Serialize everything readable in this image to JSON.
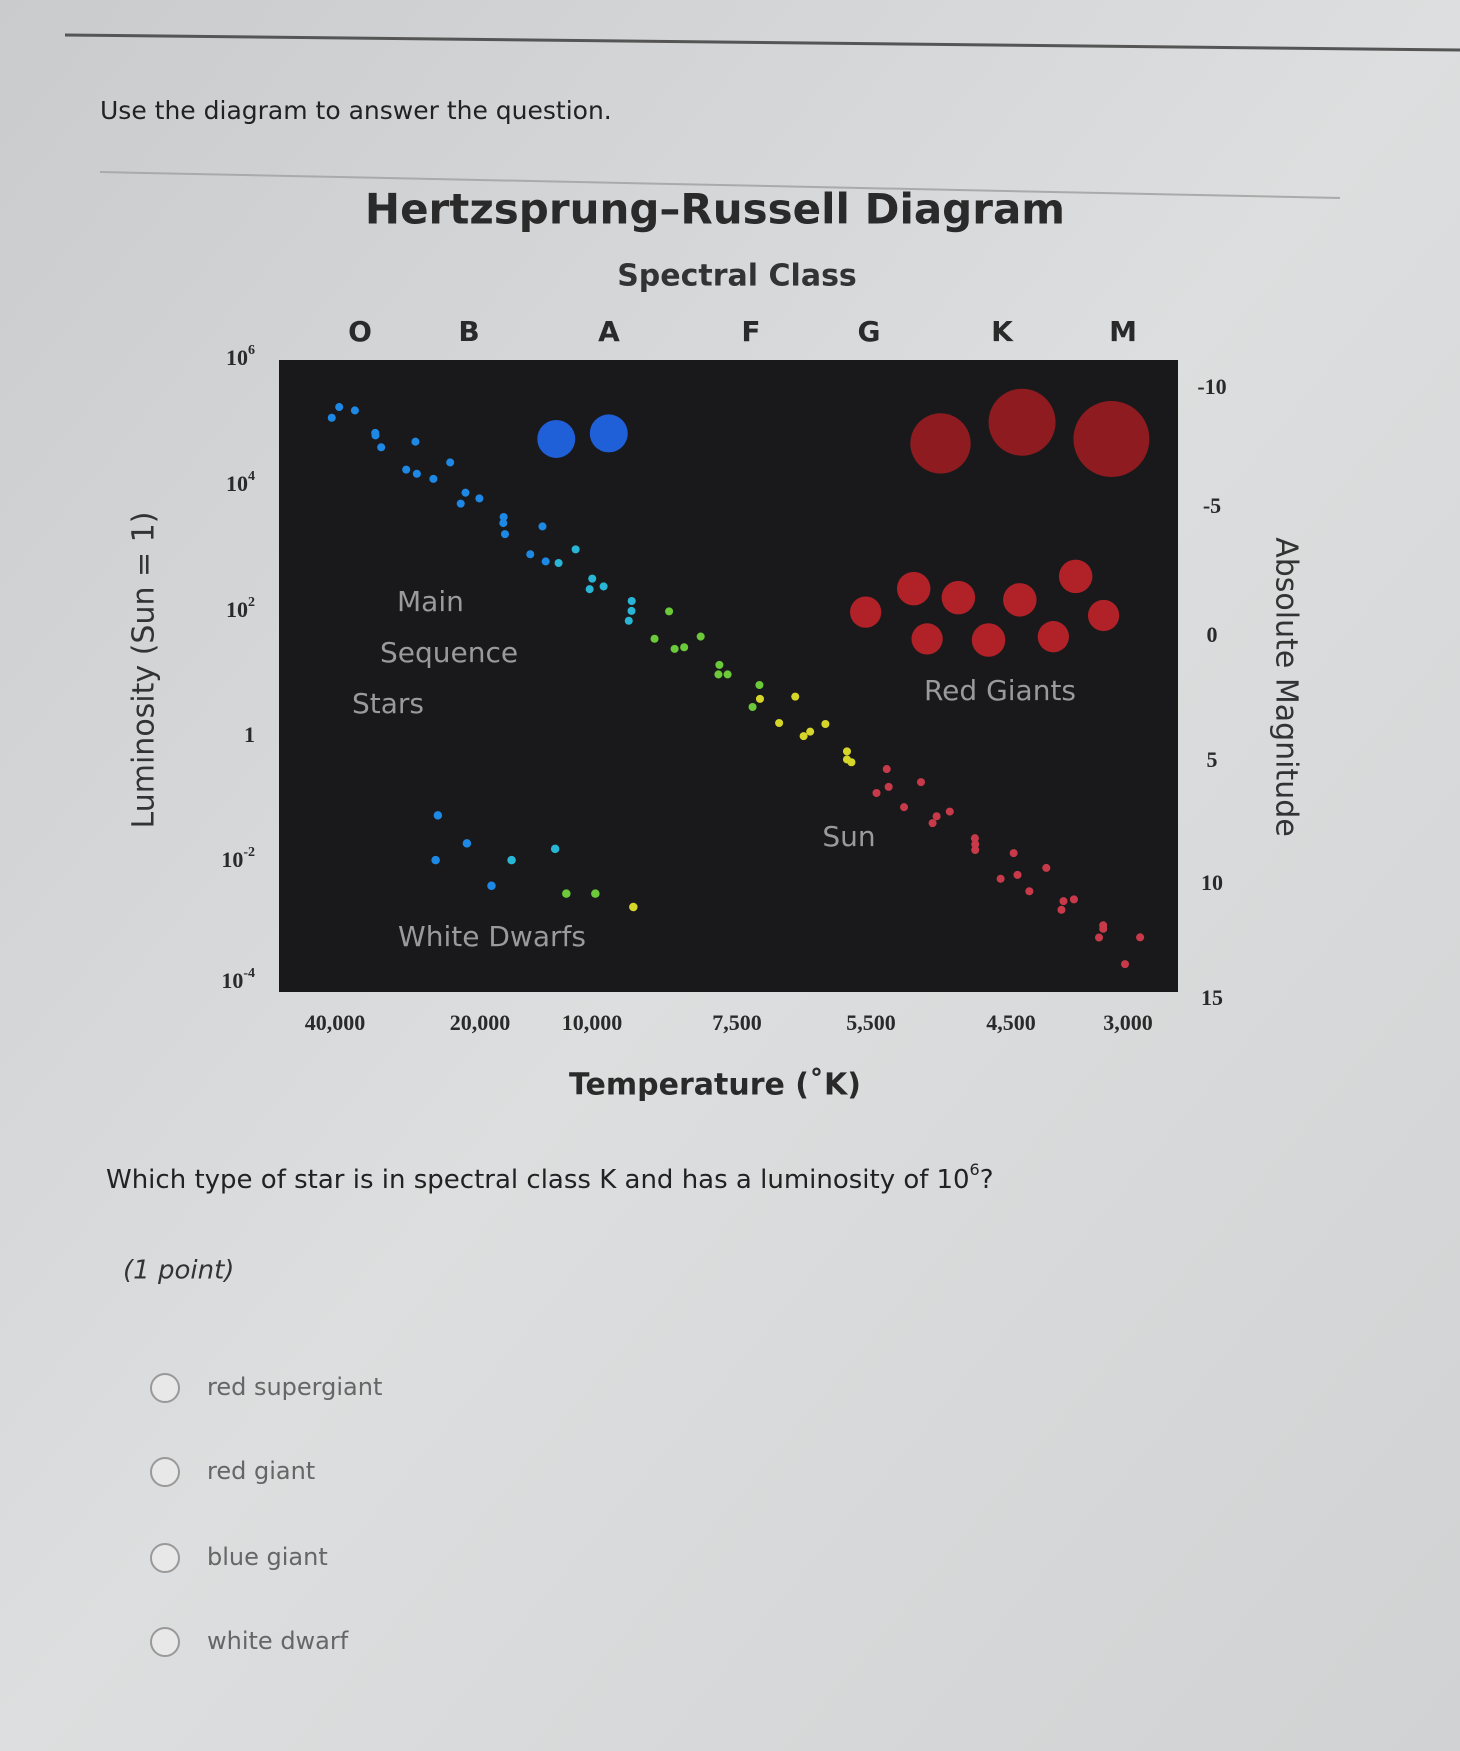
{
  "instruction": "Use the diagram to answer the question.",
  "diagram": {
    "title": "Hertzsprung–Russell Diagram",
    "top_axis_title": "Spectral Class",
    "spectral_classes": [
      "O",
      "B",
      "A",
      "F",
      "G",
      "K",
      "M"
    ],
    "left_axis_title": "Luminosity (Sun = 1)",
    "luminosity_ticks": [
      {
        "base": "10",
        "exp": "6"
      },
      {
        "base": "10",
        "exp": "4"
      },
      {
        "base": "10",
        "exp": "2"
      },
      {
        "base": "1"
      },
      {
        "base": "10",
        "exp": "-2"
      },
      {
        "base": "10",
        "exp": "-4"
      }
    ],
    "right_axis_title": "Absolute Magnitude",
    "magnitude_ticks": [
      "-10",
      "-5",
      "0",
      "5",
      "10",
      "15"
    ],
    "bottom_axis_title": "Temperature (˚K)",
    "temperature_ticks": [
      "40,000",
      "20,000",
      "10,000",
      "7,500",
      "5,500",
      "4,500",
      "3,000"
    ],
    "regions": {
      "main_sequence": [
        "Main",
        "Sequence",
        "Stars"
      ],
      "red_giants": "Red Giants",
      "sun": "Sun",
      "white_dwarfs": "White Dwarfs"
    }
  },
  "question": {
    "text": "Which type of star is in spectral class K and has a luminosity of",
    "power_base": "10",
    "power_exp": "6",
    "end": "?"
  },
  "points": "(1 point)",
  "options": [
    "red supergiant",
    "red giant",
    "blue giant",
    "white dwarf"
  ]
}
